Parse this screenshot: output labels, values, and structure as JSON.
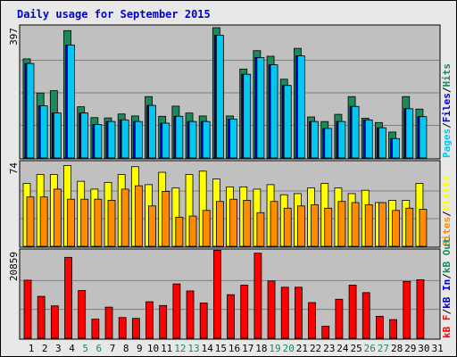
{
  "chart_data": [
    {
      "type": "bar",
      "title": "Daily usage for September 2015",
      "panel": "hits-files-pages",
      "max_label": "397",
      "ylim": [
        0,
        397
      ],
      "legend": [
        "Pages",
        "Files",
        "Hits"
      ],
      "colors": {
        "Hits": "#1a8a5a",
        "Files": "#0000cc",
        "Pages": "#00c8f0"
      },
      "categories": [
        "1",
        "2",
        "3",
        "4",
        "5",
        "6",
        "7",
        "8",
        "9",
        "10",
        "11",
        "12",
        "13",
        "14",
        "15",
        "16",
        "17",
        "18",
        "19",
        "20",
        "21",
        "22",
        "23",
        "24",
        "25",
        "26",
        "27",
        "28",
        "29",
        "30",
        "31"
      ],
      "weekend_days": [
        "5",
        "6",
        "12",
        "13",
        "19",
        "20",
        "26",
        "27"
      ],
      "series": [
        {
          "name": "Hits",
          "values": [
            302,
            198,
            205,
            388,
            156,
            123,
            122,
            134,
            128,
            187,
            127,
            158,
            137,
            128,
            397,
            128,
            271,
            327,
            310,
            240,
            334,
            125,
            111,
            133,
            187,
            121,
            108,
            79,
            187,
            149,
            null
          ]
        },
        {
          "name": "Files",
          "values": [
            288,
            159,
            137,
            344,
            137,
            102,
            111,
            116,
            111,
            160,
            106,
            127,
            111,
            111,
            374,
            118,
            255,
            306,
            284,
            221,
            311,
            111,
            90,
            111,
            157,
            116,
            92,
            59,
            150,
            126,
            null
          ]
        },
        {
          "name": "Pages",
          "values": [
            288,
            159,
            137,
            344,
            137,
            102,
            111,
            116,
            111,
            160,
            106,
            127,
            111,
            111,
            374,
            118,
            255,
            306,
            284,
            221,
            311,
            111,
            90,
            111,
            157,
            116,
            92,
            59,
            150,
            126,
            null
          ]
        }
      ]
    },
    {
      "type": "bar",
      "panel": "visits-sites",
      "max_label": "74",
      "ylim": [
        0,
        74
      ],
      "legend": [
        "Sites",
        "Visits"
      ],
      "colors": {
        "Visits": "#ffff00",
        "Sites": "#ff8c00"
      },
      "categories": [
        "1",
        "2",
        "3",
        "4",
        "5",
        "6",
        "7",
        "8",
        "9",
        "10",
        "11",
        "12",
        "13",
        "14",
        "15",
        "16",
        "17",
        "18",
        "19",
        "20",
        "21",
        "22",
        "23",
        "24",
        "25",
        "26",
        "27",
        "28",
        "29",
        "30",
        "31"
      ],
      "series": [
        {
          "name": "Visits",
          "values": [
            56,
            64,
            64,
            72,
            58,
            51,
            57,
            64,
            71,
            55,
            66,
            52,
            64,
            67,
            60,
            53,
            53,
            51,
            55,
            46,
            47,
            52,
            56,
            52,
            47,
            50,
            39,
            41,
            41,
            56,
            null
          ]
        },
        {
          "name": "Sites",
          "values": [
            44,
            44,
            51,
            42,
            42,
            42,
            41,
            51,
            54,
            36,
            49,
            26,
            27,
            32,
            40,
            42,
            41,
            30,
            40,
            34,
            36,
            37,
            34,
            40,
            39,
            37,
            39,
            32,
            34,
            33,
            null
          ]
        }
      ]
    },
    {
      "type": "bar",
      "panel": "kbytes",
      "max_label": "20859",
      "ylim": [
        0,
        20859
      ],
      "legend": [
        "kB F",
        "kB In",
        "kB Out"
      ],
      "colors": {
        "kB F": "#ff0000",
        "kB In": "#0000cc",
        "kB Out": "#1a8a5a"
      },
      "categories": [
        "1",
        "2",
        "3",
        "4",
        "5",
        "6",
        "7",
        "8",
        "9",
        "10",
        "11",
        "12",
        "13",
        "14",
        "15",
        "16",
        "17",
        "18",
        "19",
        "20",
        "21",
        "22",
        "23",
        "24",
        "25",
        "26",
        "27",
        "28",
        "29",
        "30",
        "31"
      ],
      "series": [
        {
          "name": "kB F",
          "values": [
            14000,
            10100,
            7800,
            19500,
            11500,
            4600,
            7500,
            5000,
            4800,
            8800,
            7900,
            13100,
            11400,
            8500,
            21200,
            10500,
            12800,
            20500,
            13800,
            12300,
            12300,
            8600,
            2900,
            9400,
            12800,
            11000,
            5300,
            4500,
            13700,
            14100,
            null
          ]
        }
      ]
    }
  ]
}
